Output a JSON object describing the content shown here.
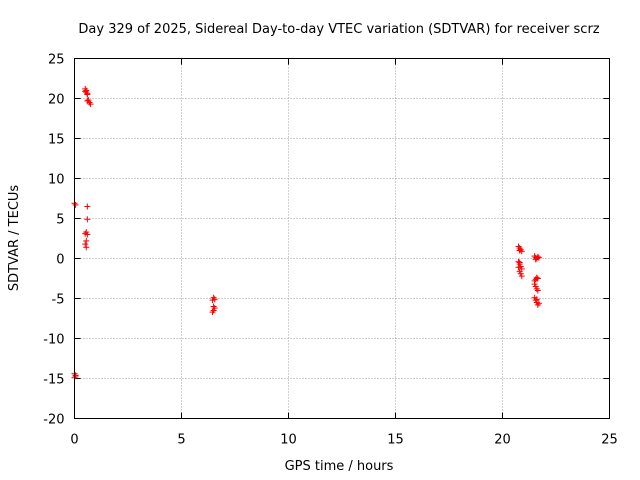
{
  "chart_data": {
    "type": "scatter",
    "title": "Day 329 of 2025, Sidereal Day-to-day VTEC variation (SDTVAR) for receiver scrz",
    "xlabel": "GPS time / hours",
    "ylabel": "SDTVAR / TECUs",
    "xlim": [
      0,
      25
    ],
    "ylim": [
      -20,
      25
    ],
    "xticks": [
      0,
      5,
      10,
      15,
      20,
      25
    ],
    "yticks": [
      -20,
      -15,
      -10,
      -5,
      0,
      5,
      10,
      15,
      20,
      25
    ],
    "grid": true,
    "marker": "+",
    "color": "#ff0000",
    "series": [
      {
        "name": "SDTVAR",
        "points": [
          [
            0.5,
            21.2
          ],
          [
            0.55,
            20.8
          ],
          [
            0.6,
            20.5
          ],
          [
            0.5,
            20.9
          ],
          [
            0.55,
            21.0
          ],
          [
            0.6,
            20.6
          ],
          [
            0.65,
            19.8
          ],
          [
            0.7,
            19.5
          ],
          [
            0.75,
            19.3
          ],
          [
            0.6,
            19.7
          ],
          [
            0.0,
            6.9
          ],
          [
            0.05,
            6.7
          ],
          [
            0.6,
            6.5
          ],
          [
            0.6,
            4.9
          ],
          [
            0.55,
            3.3
          ],
          [
            0.5,
            3.1
          ],
          [
            0.6,
            3.0
          ],
          [
            0.55,
            2.2
          ],
          [
            0.5,
            1.8
          ],
          [
            0.55,
            1.4
          ],
          [
            0.0,
            -14.4
          ],
          [
            0.05,
            -14.7
          ],
          [
            0.0,
            -14.9
          ],
          [
            0.05,
            -14.6
          ],
          [
            6.5,
            -4.9
          ],
          [
            6.55,
            -5.1
          ],
          [
            6.45,
            -5.2
          ],
          [
            6.5,
            -6.0
          ],
          [
            6.55,
            -6.2
          ],
          [
            6.5,
            -6.5
          ],
          [
            6.45,
            -6.7
          ],
          [
            20.75,
            1.5
          ],
          [
            20.8,
            1.3
          ],
          [
            20.85,
            1.1
          ],
          [
            20.9,
            0.9
          ],
          [
            20.8,
            1.0
          ],
          [
            20.75,
            -0.4
          ],
          [
            20.8,
            -0.7
          ],
          [
            20.85,
            -1.0
          ],
          [
            20.9,
            -1.3
          ],
          [
            20.8,
            -1.6
          ],
          [
            20.85,
            -1.9
          ],
          [
            20.9,
            -2.2
          ],
          [
            20.75,
            -1.1
          ],
          [
            20.8,
            -0.5
          ],
          [
            21.5,
            0.3
          ],
          [
            21.55,
            0.1
          ],
          [
            21.6,
            0.0
          ],
          [
            21.65,
            0.2
          ],
          [
            21.7,
            0.1
          ],
          [
            21.55,
            -0.1
          ],
          [
            21.5,
            -2.8
          ],
          [
            21.55,
            -2.6
          ],
          [
            21.6,
            -2.4
          ],
          [
            21.65,
            -2.5
          ],
          [
            21.5,
            -3.2
          ],
          [
            21.55,
            -3.5
          ],
          [
            21.6,
            -3.8
          ],
          [
            21.65,
            -4.0
          ],
          [
            21.5,
            -4.9
          ],
          [
            21.55,
            -5.2
          ],
          [
            21.6,
            -5.5
          ],
          [
            21.65,
            -5.8
          ],
          [
            21.7,
            -5.6
          ],
          [
            21.6,
            -5.1
          ]
        ]
      }
    ]
  }
}
